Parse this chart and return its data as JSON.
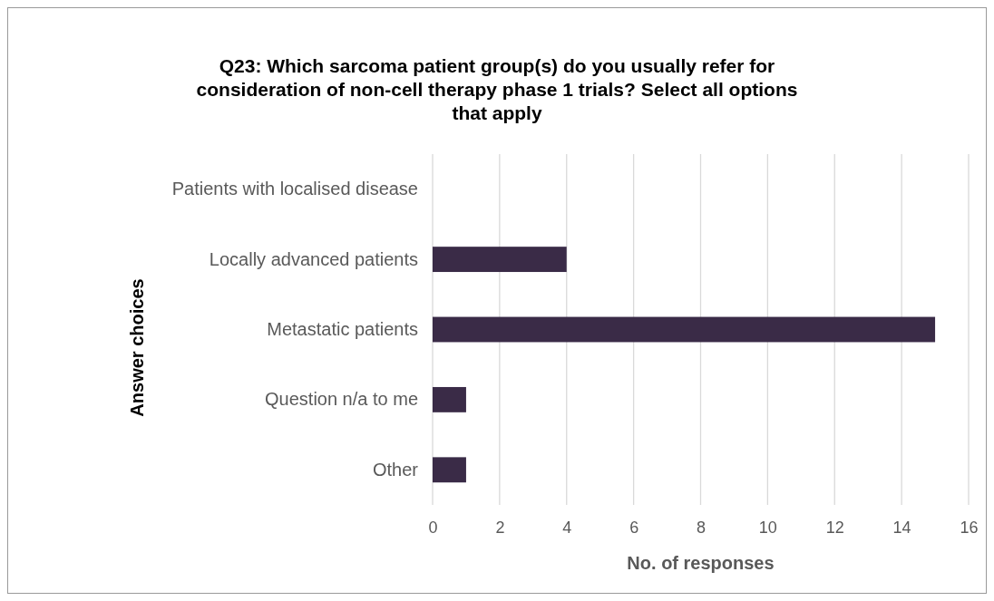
{
  "chart_data": {
    "type": "bar",
    "orientation": "horizontal",
    "title": "Q23: Which sarcoma patient group(s) do you usually refer for consideration of non-cell therapy phase 1 trials? Select all options that apply",
    "xlabel": "No. of responses",
    "ylabel": "Answer choices",
    "categories": [
      "Patients with localised disease",
      "Locally advanced patients",
      "Metastatic patients",
      "Question n/a to me",
      "Other"
    ],
    "values": [
      0,
      4,
      15,
      1,
      1
    ],
    "color": "#3a2b47",
    "xlim": [
      0,
      16
    ],
    "xticks": [
      0,
      2,
      4,
      6,
      8,
      10,
      12,
      14,
      16
    ],
    "grid": "x"
  }
}
